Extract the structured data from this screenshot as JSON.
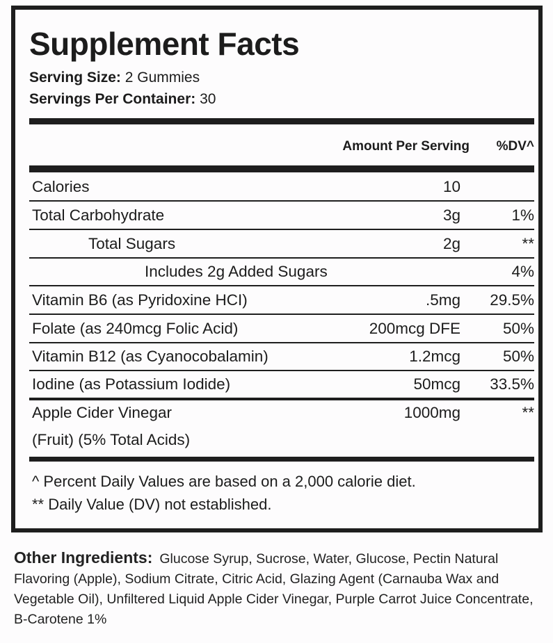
{
  "title": "Supplement Facts",
  "serving_size": {
    "label": "Serving Size:",
    "value": "2 Gummies"
  },
  "servings_per_container": {
    "label": "Servings Per Container:",
    "value": "30"
  },
  "header": {
    "amount": "Amount Per Serving",
    "dv": "%DV^"
  },
  "rows": [
    {
      "name": "Calories",
      "amount": "10",
      "dv": ""
    },
    {
      "name": "Total Carbohydrate",
      "amount": "3g",
      "dv": "1%"
    },
    {
      "name": "Total Sugars",
      "amount": "2g",
      "dv": "**"
    },
    {
      "name": "Includes 2g Added Sugars",
      "amount": "",
      "dv": "4%"
    },
    {
      "name": "Vitamin B6 (as Pyridoxine HCI)",
      "amount": ".5mg",
      "dv": "29.5%"
    },
    {
      "name": "Folate (as 240mcg Folic Acid)",
      "amount": "200mcg DFE",
      "dv": "50%"
    },
    {
      "name": "Vitamin B12 (as Cyanocobalamin)",
      "amount": "1.2mcg",
      "dv": "50%"
    },
    {
      "name": "Iodine (as Potassium Iodide)",
      "amount": "50mcg",
      "dv": "33.5%"
    },
    {
      "name": "Apple Cider Vinegar",
      "name2": "(Fruit) (5% Total Acids)",
      "amount": "1000mg",
      "dv": "**"
    }
  ],
  "footnotes": [
    "^ Percent Daily Values are based on a 2,000 calorie diet.",
    "** Daily Value (DV) not established."
  ],
  "other_ingredients": {
    "label": "Other Ingredients:",
    "text": "Glucose Syrup, Sucrose, Water, Glucose, Pectin Natural Flavoring (Apple), Sodium Citrate, Citric Acid, Glazing Agent (Carnauba Wax and Vegetable Oil), Unfiltered Liquid Apple Cider Vinegar, Purple Carrot Juice Concentrate, B-Carotene 1%"
  }
}
